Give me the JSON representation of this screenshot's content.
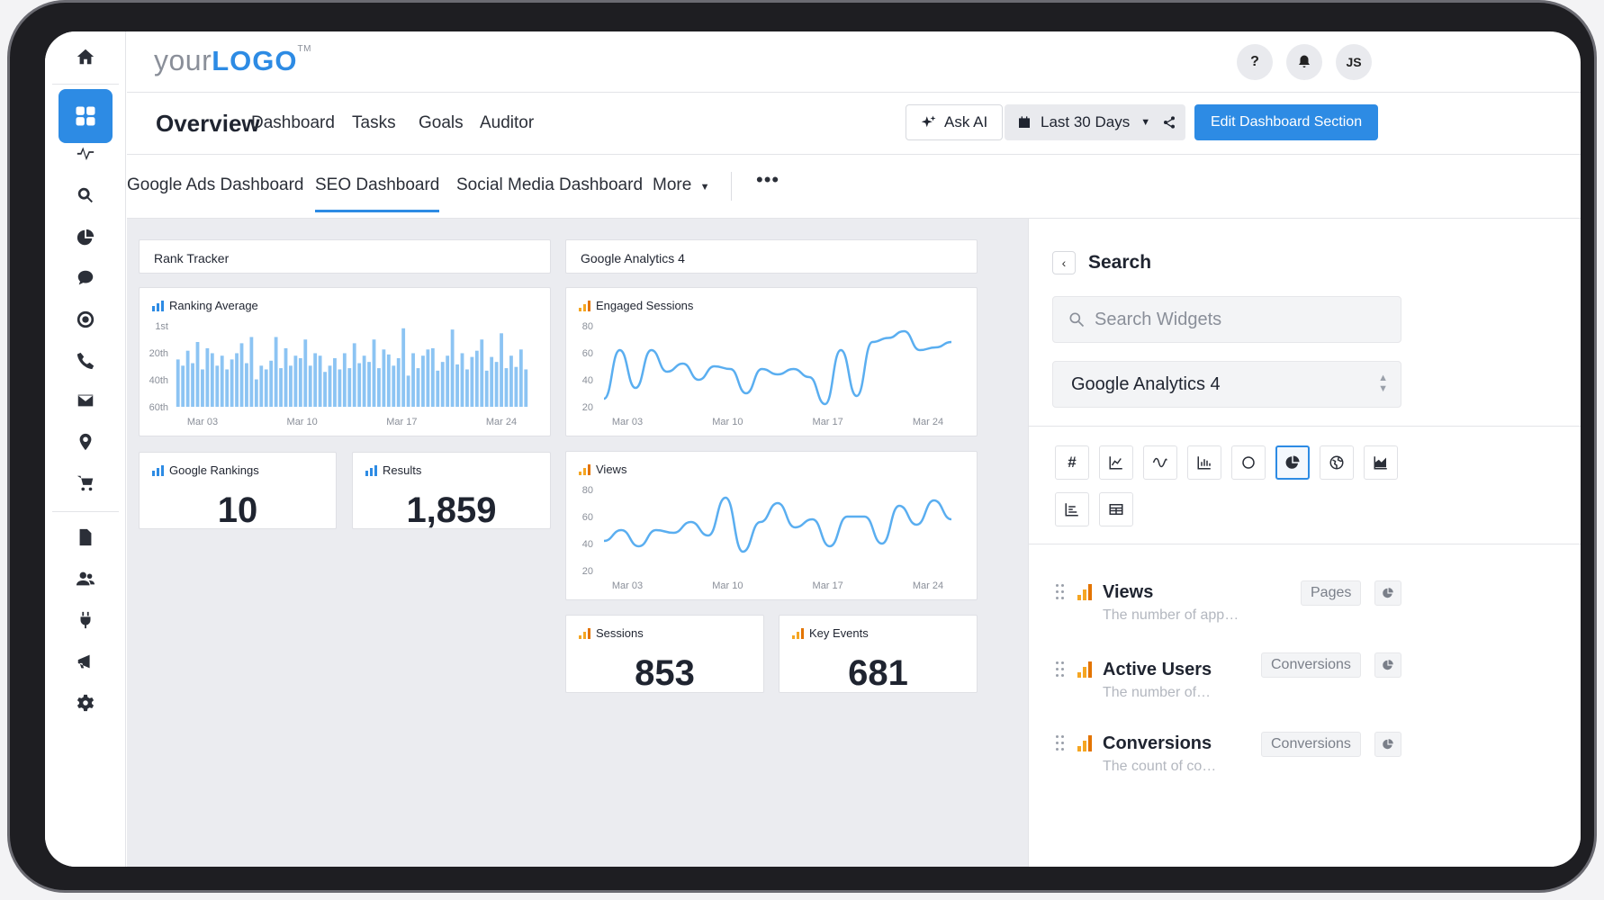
{
  "logo": {
    "prefix": "your",
    "brand": "LOGO",
    "tm": "TM"
  },
  "header": {
    "help": "?",
    "avatar": "JS"
  },
  "nav": {
    "title": "Overview",
    "links": [
      "Dashboard",
      "Tasks",
      "Goals",
      "Auditor"
    ],
    "ask_ai": "Ask AI",
    "date_range": "Last 30 Days",
    "edit": "Edit Dashboard Section"
  },
  "tabs": {
    "items": [
      "Google Ads Dashboard",
      "SEO Dashboard",
      "Social Media Dashboard",
      "More"
    ],
    "active": "SEO Dashboard"
  },
  "sections": {
    "rank_tracker": "Rank Tracker",
    "ga4": "Google Analytics 4"
  },
  "widgets": {
    "ranking_average": "Ranking Average",
    "engaged_sessions": "Engaged Sessions",
    "google_rankings": {
      "label": "Google Rankings",
      "value": "10"
    },
    "results": {
      "label": "Results",
      "value": "1,859"
    },
    "views": "Views",
    "sessions": {
      "label": "Sessions",
      "value": "853"
    },
    "key_events": {
      "label": "Key Events",
      "value": "681"
    }
  },
  "chart_data": [
    {
      "type": "bar",
      "title": "Ranking Average",
      "x_ticks": [
        "Mar 03",
        "Mar 10",
        "Mar 17",
        "Mar 24"
      ],
      "y_ticks": [
        "1st",
        "20th",
        "40th",
        "60th"
      ],
      "values": [
        38,
        33,
        45,
        35,
        52,
        30,
        47,
        43,
        33,
        41,
        30,
        38,
        43,
        51,
        35,
        56,
        22,
        33,
        30,
        37,
        56,
        31,
        47,
        33,
        41,
        39,
        54,
        33,
        43,
        41,
        28,
        33,
        39,
        30,
        43,
        31,
        51,
        35,
        41,
        36,
        54,
        31,
        46,
        42,
        33,
        39,
        63,
        25,
        43,
        31,
        41,
        46,
        47,
        29,
        36,
        41,
        62,
        34,
        43,
        30,
        40,
        45,
        54,
        29,
        40,
        36,
        59,
        31,
        41,
        32,
        46,
        30
      ],
      "color": "#8cc4f3"
    },
    {
      "type": "line",
      "title": "Engaged Sessions",
      "x_ticks": [
        "Mar 03",
        "Mar 10",
        "Mar 17",
        "Mar 24"
      ],
      "y_ticks": [
        80,
        60,
        40,
        20
      ],
      "ylim": [
        20,
        80
      ],
      "values": [
        26,
        62,
        34,
        62,
        46,
        52,
        40,
        50,
        48,
        30,
        48,
        44,
        48,
        42,
        22,
        62,
        28,
        68,
        71,
        76,
        62,
        64,
        68
      ],
      "color": "#5aaef0"
    },
    {
      "type": "line",
      "title": "Views",
      "x_ticks": [
        "Mar 03",
        "Mar 10",
        "Mar 17",
        "Mar 24"
      ],
      "y_ticks": [
        80,
        60,
        40,
        20
      ],
      "ylim": [
        20,
        80
      ],
      "values": [
        42,
        50,
        38,
        50,
        48,
        56,
        46,
        74,
        34,
        56,
        70,
        52,
        58,
        38,
        60,
        60,
        40,
        68,
        54,
        72,
        58
      ],
      "color": "#5aaef0"
    }
  ],
  "panel": {
    "title": "Search",
    "search_placeholder": "Search Widgets",
    "source": "Google Analytics 4",
    "metrics": [
      {
        "name": "Views",
        "desc": "The number of app…",
        "tag": "Pages"
      },
      {
        "name": "Active Users",
        "desc": "The number of…",
        "tag": "Conversions"
      },
      {
        "name": "Conversions",
        "desc": "The count of co…",
        "tag": "Conversions"
      }
    ]
  },
  "colors": {
    "accent": "#2d8be4",
    "bars": "#8cc4f3",
    "line": "#5aaef0",
    "ga_orange": "#f5a623"
  }
}
